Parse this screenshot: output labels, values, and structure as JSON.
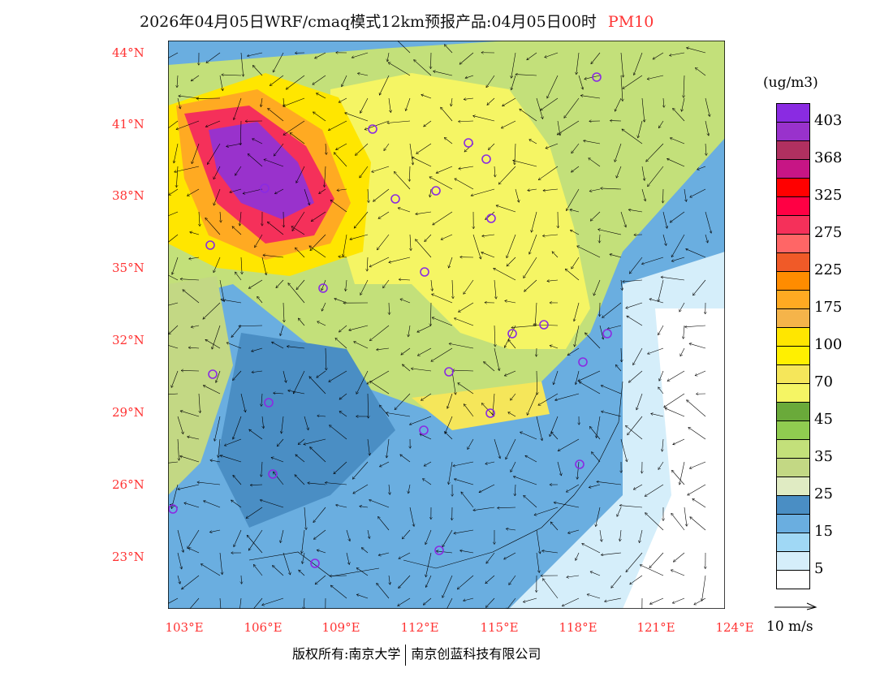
{
  "title": {
    "text": "2026年04月05日WRF/cmaq模式12km预报产品:04月05日00时",
    "variable": "PM10"
  },
  "lat_labels": [
    "44°N",
    "41°N",
    "38°N",
    "35°N",
    "32°N",
    "29°N",
    "26°N",
    "23°N"
  ],
  "lon_labels": [
    "103°E",
    "106°E",
    "109°E",
    "112°E",
    "115°E",
    "118°E",
    "121°E",
    "124°E"
  ],
  "legend": {
    "unit": "(ug/m3)",
    "colors": [
      "#8a2be2",
      "#9932cc",
      "#b03060",
      "#c71585",
      "#ff0000",
      "#ff0044",
      "#f5305a",
      "#ff6666",
      "#f05a28",
      "#ff8c00",
      "#ffaa22",
      "#f5b44a",
      "#ffe600",
      "#fff000",
      "#f5e65a",
      "#f5f564",
      "#6aaa3a",
      "#90cc50",
      "#c3e07a",
      "#c3d884",
      "#e0ebc3",
      "#4a8ec4",
      "#6aaee0",
      "#a0d8f5",
      "#d5eefa",
      "#ffffff"
    ],
    "labels": [
      "403",
      "368",
      "325",
      "275",
      "225",
      "175",
      "100",
      "70",
      "45",
      "35",
      "25",
      "15",
      "5"
    ]
  },
  "vector_legend": "10 m/s",
  "footer": {
    "left": "版权所有:南京大学",
    "right": "南京创蓝科技有限公司"
  }
}
